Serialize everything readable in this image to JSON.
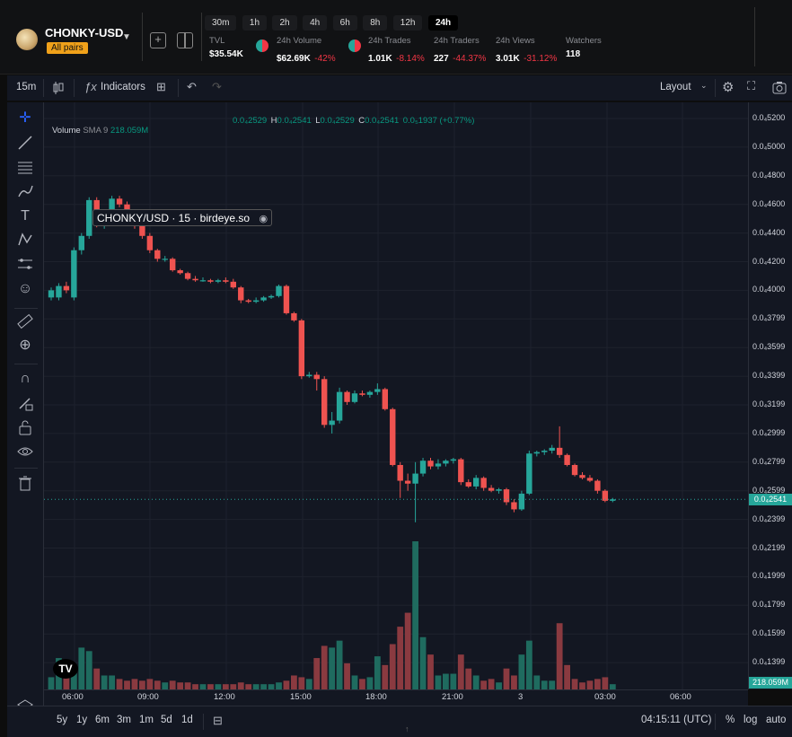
{
  "header": {
    "pair_name": "CHONKY-USD",
    "badge": "All pairs",
    "timeframes": [
      "30m",
      "1h",
      "2h",
      "4h",
      "6h",
      "8h",
      "12h",
      "24h"
    ],
    "active_timeframe": "24h",
    "stats": {
      "tvl": {
        "label": "TVL",
        "value": "$35.54K"
      },
      "volume": {
        "label": "24h Volume",
        "value": "$62.69K",
        "change": "-42%"
      },
      "trades": {
        "label": "24h Trades",
        "value": "1.01K",
        "change": "-8.14%"
      },
      "traders": {
        "label": "24h Traders",
        "value": "227",
        "change": "-44.37%"
      },
      "views": {
        "label": "24h Views",
        "value": "3.01K",
        "change": "-31.12%"
      },
      "watchers": {
        "label": "Watchers",
        "value": "118"
      }
    }
  },
  "toolbar": {
    "interval": "15m",
    "indicators_label": "Indicators",
    "layout_label": "Layout"
  },
  "legend": {
    "title": "CHONKY/USD · 15 · birdeye.so",
    "open_label": "O",
    "open": "0.0₄2529",
    "high_label": "H",
    "high": "0.0₄2541",
    "low_label": "L",
    "low": "0.0₄2529",
    "close_label": "C",
    "close": "0.0₄2541",
    "change": "0.0₅1937 (+0.77%)",
    "volume_label": "Volume",
    "sma_label": "SMA 9",
    "volume_value": "218.059M"
  },
  "price_axis": [
    "0.0₄5200",
    "0.0₄5000",
    "0.0₄4800",
    "0.0₄4600",
    "0.0₄4400",
    "0.0₄4200",
    "0.0₄4000",
    "0.0₄3799",
    "0.0₄3599",
    "0.0₄3399",
    "0.0₄3199",
    "0.0₄2999",
    "0.0₄2799",
    "0.0₄2599",
    "0.0₄2399",
    "0.0₄2199",
    "0.0₄1999",
    "0.0₄1799",
    "0.0₄1599",
    "0.0₄1399"
  ],
  "current_price_tag": "0.0₄2541",
  "volume_tag": "218.059M",
  "time_axis": [
    "06:00",
    "09:00",
    "12:00",
    "15:00",
    "18:00",
    "21:00",
    "3",
    "03:00",
    "06:00"
  ],
  "bottom": {
    "ranges": [
      "5y",
      "1y",
      "6m",
      "3m",
      "1m",
      "5d",
      "1d"
    ],
    "clock": "04:15:11 (UTC)",
    "pct": "%",
    "log": "log",
    "auto": "auto"
  },
  "colors": {
    "up": "#26a69a",
    "down": "#ef5350",
    "up_vol": "#1f6b5f",
    "down_vol": "#8a3a40"
  },
  "chart_data": {
    "type": "candlestick",
    "interval": "15m",
    "ylim": [
      1.25e-05,
      5.3e-05
    ],
    "candles": [
      {
        "o": 3.95e-05,
        "h": 4.02e-05,
        "l": 3.93e-05,
        "c": 4e-05,
        "v": 7
      },
      {
        "o": 3.95e-05,
        "h": 4.05e-05,
        "l": 3.93e-05,
        "c": 4.03e-05,
        "v": 18
      },
      {
        "o": 4.03e-05,
        "h": 4.06e-05,
        "l": 3.98e-05,
        "c": 4e-05,
        "v": 16
      },
      {
        "o": 3.95e-05,
        "h": 4.3e-05,
        "l": 3.93e-05,
        "c": 4.28e-05,
        "v": 13
      },
      {
        "o": 4.28e-05,
        "h": 4.4e-05,
        "l": 4.25e-05,
        "c": 4.38e-05,
        "v": 24
      },
      {
        "o": 4.38e-05,
        "h": 4.65e-05,
        "l": 4.36e-05,
        "c": 4.63e-05,
        "v": 22
      },
      {
        "o": 4.63e-05,
        "h": 4.65e-05,
        "l": 4.44e-05,
        "c": 4.46e-05,
        "v": 12
      },
      {
        "o": 4.46e-05,
        "h": 4.5e-05,
        "l": 4.43e-05,
        "c": 4.47e-05,
        "v": 8
      },
      {
        "o": 4.47e-05,
        "h": 4.66e-05,
        "l": 4.45e-05,
        "c": 4.64e-05,
        "v": 8
      },
      {
        "o": 4.64e-05,
        "h": 4.66e-05,
        "l": 4.58e-05,
        "c": 4.6e-05,
        "v": 6
      },
      {
        "o": 4.6e-05,
        "h": 4.62e-05,
        "l": 4.5e-05,
        "c": 4.52e-05,
        "v": 5
      },
      {
        "o": 4.52e-05,
        "h": 4.55e-05,
        "l": 4.43e-05,
        "c": 4.45e-05,
        "v": 6
      },
      {
        "o": 4.45e-05,
        "h": 4.47e-05,
        "l": 4.36e-05,
        "c": 4.38e-05,
        "v": 5
      },
      {
        "o": 4.38e-05,
        "h": 4.4e-05,
        "l": 4.26e-05,
        "c": 4.28e-05,
        "v": 6
      },
      {
        "o": 4.28e-05,
        "h": 4.29e-05,
        "l": 4.2e-05,
        "c": 4.22e-05,
        "v": 5
      },
      {
        "o": 4.22e-05,
        "h": 4.24e-05,
        "l": 4.2e-05,
        "c": 4.22e-05,
        "v": 4
      },
      {
        "o": 4.22e-05,
        "h": 4.23e-05,
        "l": 4.13e-05,
        "c": 4.14e-05,
        "v": 5
      },
      {
        "o": 4.14e-05,
        "h": 4.15e-05,
        "l": 4.11e-05,
        "c": 4.12e-05,
        "v": 4
      },
      {
        "o": 4.12e-05,
        "h": 4.13e-05,
        "l": 4.07e-05,
        "c": 4.08e-05,
        "v": 4
      },
      {
        "o": 4.08e-05,
        "h": 4.1e-05,
        "l": 4.06e-05,
        "c": 4.07e-05,
        "v": 3
      },
      {
        "o": 4.07e-05,
        "h": 4.09e-05,
        "l": 4.06e-05,
        "c": 4.07e-05,
        "v": 3
      },
      {
        "o": 4.07e-05,
        "h": 4.08e-05,
        "l": 4.05e-05,
        "c": 4.06e-05,
        "v": 3
      },
      {
        "o": 4.06e-05,
        "h": 4.08e-05,
        "l": 4.05e-05,
        "c": 4.07e-05,
        "v": 3
      },
      {
        "o": 4.07e-05,
        "h": 4.09e-05,
        "l": 4.05e-05,
        "c": 4.06e-05,
        "v": 3
      },
      {
        "o": 4.06e-05,
        "h": 4.08e-05,
        "l": 4.01e-05,
        "c": 4.02e-05,
        "v": 3
      },
      {
        "o": 4.02e-05,
        "h": 4.03e-05,
        "l": 3.91e-05,
        "c": 3.93e-05,
        "v": 4
      },
      {
        "o": 3.93e-05,
        "h": 3.94e-05,
        "l": 3.91e-05,
        "c": 3.92e-05,
        "v": 3
      },
      {
        "o": 3.92e-05,
        "h": 3.95e-05,
        "l": 3.91e-05,
        "c": 3.93e-05,
        "v": 3
      },
      {
        "o": 3.93e-05,
        "h": 3.96e-05,
        "l": 3.92e-05,
        "c": 3.95e-05,
        "v": 3
      },
      {
        "o": 3.95e-05,
        "h": 3.97e-05,
        "l": 3.94e-05,
        "c": 3.96e-05,
        "v": 3
      },
      {
        "o": 3.96e-05,
        "h": 4.04e-05,
        "l": 3.95e-05,
        "c": 4.03e-05,
        "v": 4
      },
      {
        "o": 4.03e-05,
        "h": 4.04e-05,
        "l": 3.83e-05,
        "c": 3.84e-05,
        "v": 5
      },
      {
        "o": 3.84e-05,
        "h": 3.85e-05,
        "l": 3.78e-05,
        "c": 3.79e-05,
        "v": 8
      },
      {
        "o": 3.79e-05,
        "h": 3.8e-05,
        "l": 3.38e-05,
        "c": 3.4e-05,
        "v": 7
      },
      {
        "o": 3.4e-05,
        "h": 3.43e-05,
        "l": 3.39e-05,
        "c": 3.41e-05,
        "v": 6
      },
      {
        "o": 3.41e-05,
        "h": 3.43e-05,
        "l": 3.3e-05,
        "c": 3.38e-05,
        "v": 18
      },
      {
        "o": 3.38e-05,
        "h": 3.4e-05,
        "l": 3.04e-05,
        "c": 3.06e-05,
        "v": 25
      },
      {
        "o": 3.06e-05,
        "h": 3.15e-05,
        "l": 3e-05,
        "c": 3.09e-05,
        "v": 24
      },
      {
        "o": 3.09e-05,
        "h": 3.32e-05,
        "l": 3.07e-05,
        "c": 3.29e-05,
        "v": 28
      },
      {
        "o": 3.29e-05,
        "h": 3.3e-05,
        "l": 3.2e-05,
        "c": 3.22e-05,
        "v": 15
      },
      {
        "o": 3.22e-05,
        "h": 3.3e-05,
        "l": 3.21e-05,
        "c": 3.28e-05,
        "v": 8
      },
      {
        "o": 3.28e-05,
        "h": 3.3e-05,
        "l": 3.26e-05,
        "c": 3.27e-05,
        "v": 6
      },
      {
        "o": 3.27e-05,
        "h": 3.3e-05,
        "l": 3.25e-05,
        "c": 3.29e-05,
        "v": 7
      },
      {
        "o": 3.29e-05,
        "h": 3.35e-05,
        "l": 3.27e-05,
        "c": 3.31e-05,
        "v": 19
      },
      {
        "o": 3.31e-05,
        "h": 3.32e-05,
        "l": 3.16e-05,
        "c": 3.17e-05,
        "v": 14
      },
      {
        "o": 3.17e-05,
        "h": 3.18e-05,
        "l": 2.77e-05,
        "c": 2.78e-05,
        "v": 26
      },
      {
        "o": 2.78e-05,
        "h": 2.8e-05,
        "l": 2.55e-05,
        "c": 2.67e-05,
        "v": 36
      },
      {
        "o": 2.67e-05,
        "h": 2.72e-05,
        "l": 2.6e-05,
        "c": 2.65e-05,
        "v": 44
      },
      {
        "o": 2.65e-05,
        "h": 2.8e-05,
        "l": 2.38e-05,
        "c": 2.72e-05,
        "v": 85
      },
      {
        "o": 2.72e-05,
        "h": 2.83e-05,
        "l": 2.7e-05,
        "c": 2.81e-05,
        "v": 30
      },
      {
        "o": 2.81e-05,
        "h": 2.83e-05,
        "l": 2.75e-05,
        "c": 2.77e-05,
        "v": 20
      },
      {
        "o": 2.77e-05,
        "h": 2.82e-05,
        "l": 2.75e-05,
        "c": 2.79e-05,
        "v": 8
      },
      {
        "o": 2.79e-05,
        "h": 2.82e-05,
        "l": 2.77e-05,
        "c": 2.81e-05,
        "v": 9
      },
      {
        "o": 2.81e-05,
        "h": 2.83e-05,
        "l": 2.79e-05,
        "c": 2.82e-05,
        "v": 9
      },
      {
        "o": 2.82e-05,
        "h": 2.83e-05,
        "l": 2.64e-05,
        "c": 2.66e-05,
        "v": 20
      },
      {
        "o": 2.66e-05,
        "h": 2.68e-05,
        "l": 2.62e-05,
        "c": 2.63e-05,
        "v": 12
      },
      {
        "o": 2.63e-05,
        "h": 2.71e-05,
        "l": 2.61e-05,
        "c": 2.69e-05,
        "v": 8
      },
      {
        "o": 2.69e-05,
        "h": 2.7e-05,
        "l": 2.6e-05,
        "c": 2.62e-05,
        "v": 5
      },
      {
        "o": 2.62e-05,
        "h": 2.64e-05,
        "l": 2.59e-05,
        "c": 2.6e-05,
        "v": 6
      },
      {
        "o": 2.6e-05,
        "h": 2.62e-05,
        "l": 2.58e-05,
        "c": 2.61e-05,
        "v": 4
      },
      {
        "o": 2.61e-05,
        "h": 2.62e-05,
        "l": 2.5e-05,
        "c": 2.52e-05,
        "v": 12
      },
      {
        "o": 2.52e-05,
        "h": 2.54e-05,
        "l": 2.45e-05,
        "c": 2.47e-05,
        "v": 8
      },
      {
        "o": 2.47e-05,
        "h": 2.6e-05,
        "l": 2.46e-05,
        "c": 2.58e-05,
        "v": 20
      },
      {
        "o": 2.58e-05,
        "h": 2.88e-05,
        "l": 2.57e-05,
        "c": 2.86e-05,
        "v": 28
      },
      {
        "o": 2.86e-05,
        "h": 2.88e-05,
        "l": 2.84e-05,
        "c": 2.87e-05,
        "v": 8
      },
      {
        "o": 2.87e-05,
        "h": 2.89e-05,
        "l": 2.85e-05,
        "c": 2.88e-05,
        "v": 5
      },
      {
        "o": 2.88e-05,
        "h": 2.92e-05,
        "l": 2.86e-05,
        "c": 2.9e-05,
        "v": 5
      },
      {
        "o": 2.9e-05,
        "h": 3.05e-05,
        "l": 2.83e-05,
        "c": 2.85e-05,
        "v": 38
      },
      {
        "o": 2.85e-05,
        "h": 2.86e-05,
        "l": 2.77e-05,
        "c": 2.78e-05,
        "v": 14
      },
      {
        "o": 2.78e-05,
        "h": 2.79e-05,
        "l": 2.7e-05,
        "c": 2.71e-05,
        "v": 6
      },
      {
        "o": 2.71e-05,
        "h": 2.73e-05,
        "l": 2.68e-05,
        "c": 2.69e-05,
        "v": 4
      },
      {
        "o": 2.69e-05,
        "h": 2.71e-05,
        "l": 2.66e-05,
        "c": 2.67e-05,
        "v": 5
      },
      {
        "o": 2.67e-05,
        "h": 2.68e-05,
        "l": 2.58e-05,
        "c": 2.6e-05,
        "v": 6
      },
      {
        "o": 2.6e-05,
        "h": 2.61e-05,
        "l": 2.52e-05,
        "c": 2.53e-05,
        "v": 7
      },
      {
        "o": 2.53e-05,
        "h": 2.55e-05,
        "l": 2.52e-05,
        "c": 2.54e-05,
        "v": 3
      }
    ]
  }
}
